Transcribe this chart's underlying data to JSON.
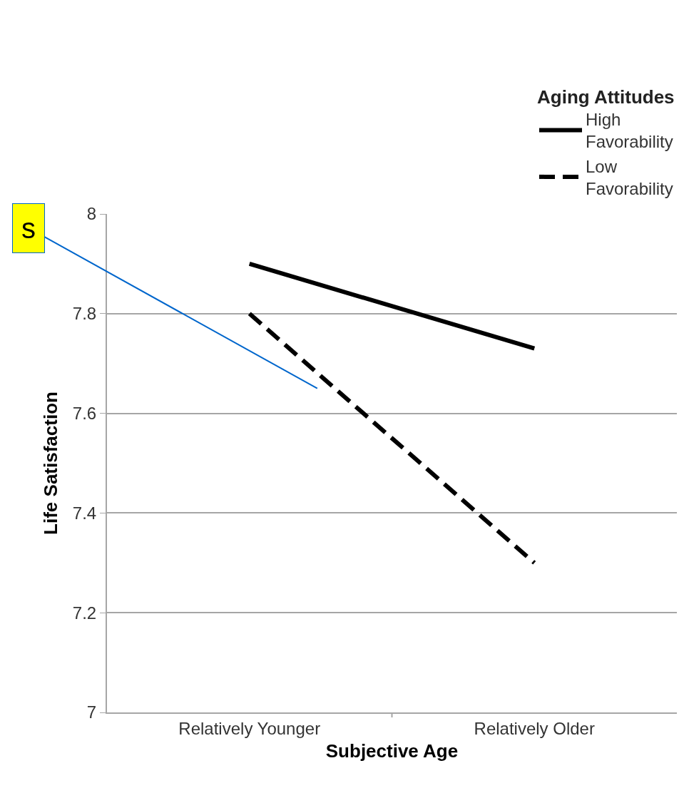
{
  "chart_data": {
    "type": "line",
    "categories": [
      "Relatively Younger",
      "Relatively Older"
    ],
    "series": [
      {
        "name": "High Favorability",
        "color": "#000000",
        "values": [
          7.9,
          7.73
        ],
        "line_style": "solid"
      },
      {
        "name": "Low Favorability",
        "color": "#000000",
        "values": [
          7.8,
          7.3
        ],
        "line_style": "dashed"
      }
    ],
    "xlabel": "Subjective Age",
    "ylabel": "Life Satisfaction",
    "legend_title": "Aging Attitudes",
    "ylim": [
      7,
      8
    ],
    "yticks": [
      7,
      7.2,
      7.4,
      7.6,
      7.8,
      8
    ],
    "grid": "y",
    "legend": "top right",
    "marker": "none",
    "annotations": [
      "s"
    ]
  }
}
